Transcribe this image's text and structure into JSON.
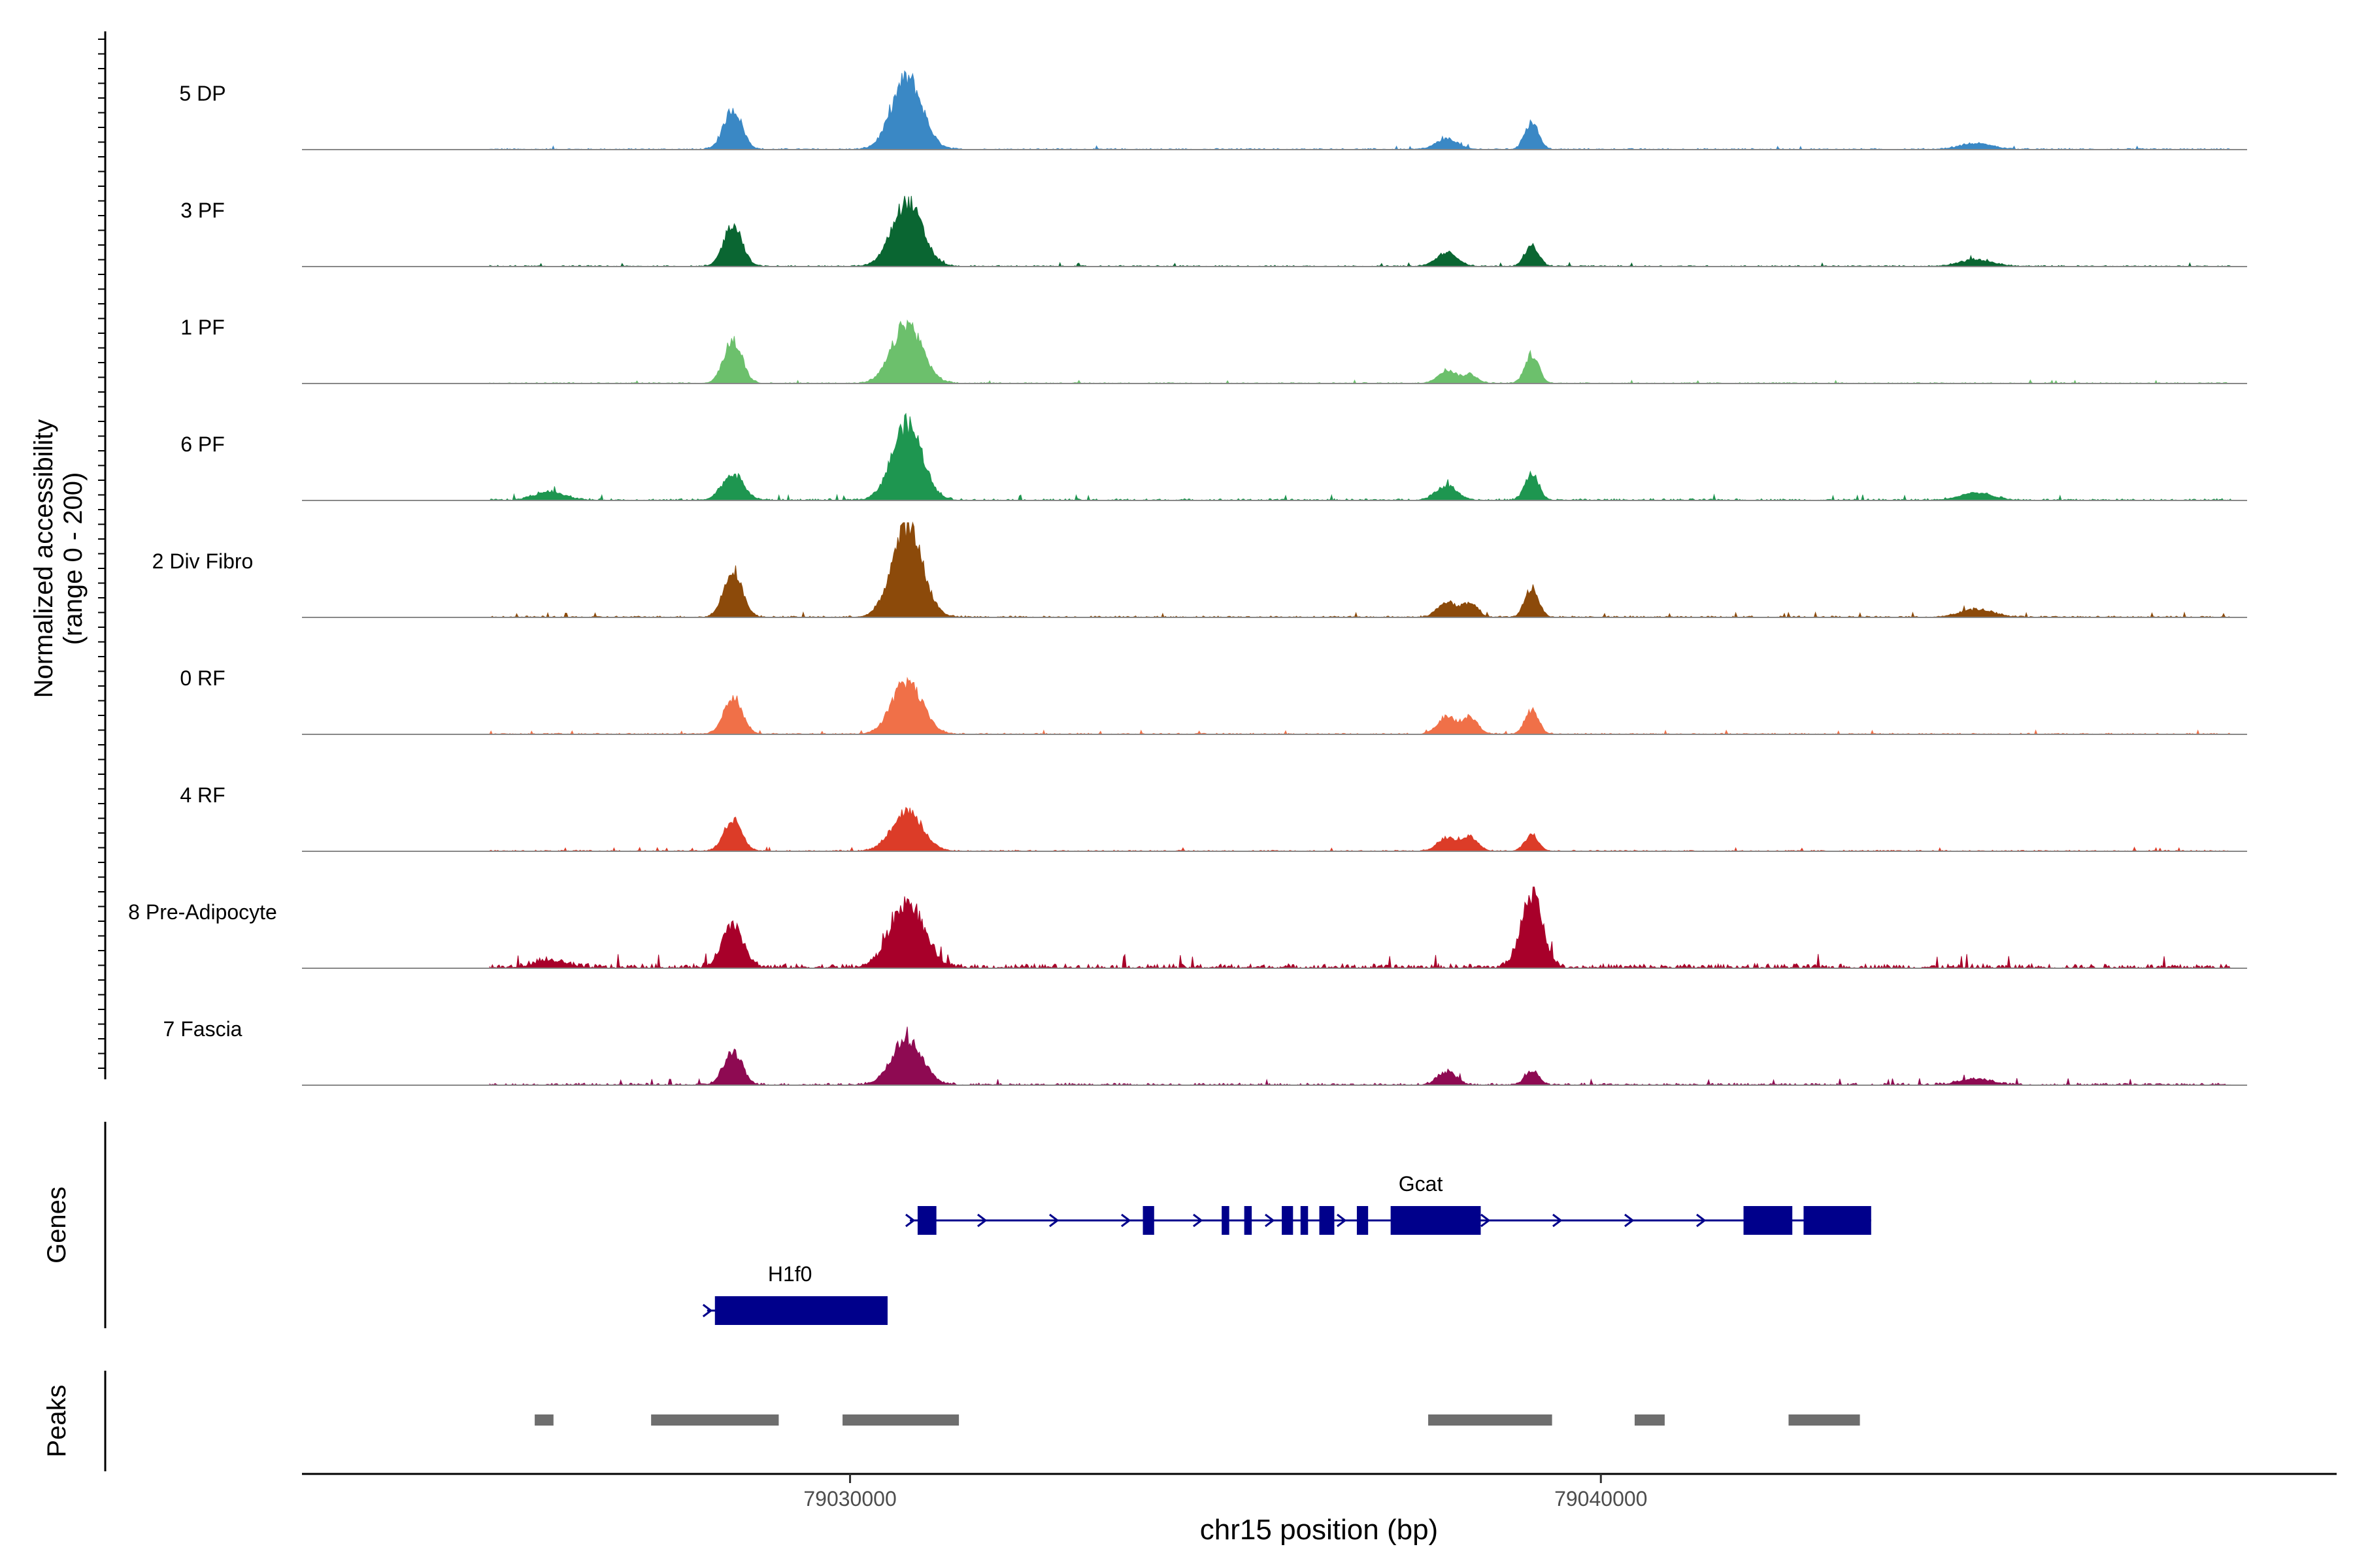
{
  "chart_data": {
    "type": "area",
    "title": "",
    "xlabel": "chr15 position (bp)",
    "ylabel_line1": "Normalized accessibility",
    "ylabel_line2": "(range 0 - 200)",
    "ylim": [
      0,
      200
    ],
    "xlim": [
      79022700,
      79049800
    ],
    "x_ticks": [
      {
        "value": 79030000,
        "label": "79030000"
      },
      {
        "value": 79040000,
        "label": "79040000"
      }
    ],
    "tracks_label_genes": "Genes",
    "tracks_label_peaks": "Peaks",
    "groups": [
      {
        "name": "5 DP",
        "color": "#3A88C5",
        "noise": 0.8,
        "peaks": [
          [
            79028440,
            120,
            85
          ],
          [
            79030760,
            200,
            150
          ],
          [
            79037950,
            140,
            22
          ],
          [
            79039080,
            90,
            58
          ],
          [
            79045000,
            220,
            12
          ]
        ]
      },
      {
        "name": "3 PF",
        "color": "#0A6632",
        "noise": 0.8,
        "peaks": [
          [
            79028440,
            120,
            90
          ],
          [
            79030760,
            200,
            135
          ],
          [
            79037950,
            140,
            28
          ],
          [
            79039080,
            90,
            45
          ],
          [
            79045000,
            220,
            14
          ]
        ]
      },
      {
        "name": "1 PF",
        "color": "#6CC06C",
        "noise": 0.7,
        "peaks": [
          [
            79028440,
            120,
            90
          ],
          [
            79030760,
            200,
            125
          ],
          [
            79037950,
            120,
            28
          ],
          [
            79038260,
            100,
            18
          ],
          [
            79039080,
            90,
            60
          ]
        ]
      },
      {
        "name": "6 PF",
        "color": "#1E9650",
        "noise": 1.2,
        "peaks": [
          [
            79026000,
            200,
            18
          ],
          [
            79028440,
            140,
            55
          ],
          [
            79030760,
            200,
            160
          ],
          [
            79037950,
            140,
            30
          ],
          [
            79039080,
            90,
            55
          ],
          [
            79045000,
            220,
            15
          ]
        ]
      },
      {
        "name": "2 Div Fibro",
        "color": "#8C4A0A",
        "noise": 1.0,
        "peaks": [
          [
            79028440,
            120,
            100
          ],
          [
            79030760,
            200,
            190
          ],
          [
            79037950,
            120,
            32
          ],
          [
            79038260,
            100,
            28
          ],
          [
            79039080,
            90,
            62
          ],
          [
            79045000,
            220,
            16
          ]
        ]
      },
      {
        "name": "0 RF",
        "color": "#F07048",
        "noise": 0.8,
        "peaks": [
          [
            79028440,
            120,
            80
          ],
          [
            79030760,
            200,
            110
          ],
          [
            79037950,
            120,
            38
          ],
          [
            79038260,
            100,
            36
          ],
          [
            79039080,
            90,
            50
          ]
        ]
      },
      {
        "name": "4 RF",
        "color": "#DC3C28",
        "noise": 0.8,
        "peaks": [
          [
            79028440,
            120,
            65
          ],
          [
            79030760,
            200,
            85
          ],
          [
            79037950,
            120,
            28
          ],
          [
            79038260,
            100,
            30
          ],
          [
            79039080,
            90,
            35
          ]
        ]
      },
      {
        "name": "8 Pre-Adipocyte",
        "color": "#A8002A",
        "noise": 3.0,
        "peaks": [
          [
            79028440,
            140,
            88
          ],
          [
            79030760,
            220,
            135
          ],
          [
            79039080,
            140,
            155
          ],
          [
            79026000,
            200,
            15
          ]
        ]
      },
      {
        "name": "7 Fascia",
        "color": "#8E0A52",
        "noise": 1.4,
        "peaks": [
          [
            79028440,
            120,
            70
          ],
          [
            79030760,
            200,
            95
          ],
          [
            79037950,
            120,
            28
          ],
          [
            79039080,
            90,
            30
          ],
          [
            79045000,
            220,
            12
          ]
        ]
      }
    ],
    "genes": [
      {
        "name": "Gcat",
        "strand": "+",
        "start": 79030900,
        "end": 79043600,
        "exons": [
          [
            79030900,
            79031150
          ],
          [
            79033900,
            79034050
          ],
          [
            79034950,
            79035050
          ],
          [
            79035250,
            79035350
          ],
          [
            79035750,
            79035900
          ],
          [
            79036000,
            79036100
          ],
          [
            79036250,
            79036450
          ],
          [
            79036750,
            79036900
          ],
          [
            79037200,
            79038400
          ],
          [
            79041900,
            79042550
          ],
          [
            79042700,
            79043600
          ]
        ]
      },
      {
        "name": "H1f0",
        "strand": "+",
        "start": 79028200,
        "end": 79030500,
        "exons": [
          [
            79028200,
            79030500
          ]
        ]
      }
    ],
    "peaks": [
      [
        79025800,
        79026050
      ],
      [
        79027350,
        79029050
      ],
      [
        79029900,
        79031450
      ],
      [
        79037700,
        79039350
      ],
      [
        79040450,
        79040850
      ],
      [
        79042500,
        79043450
      ]
    ]
  }
}
